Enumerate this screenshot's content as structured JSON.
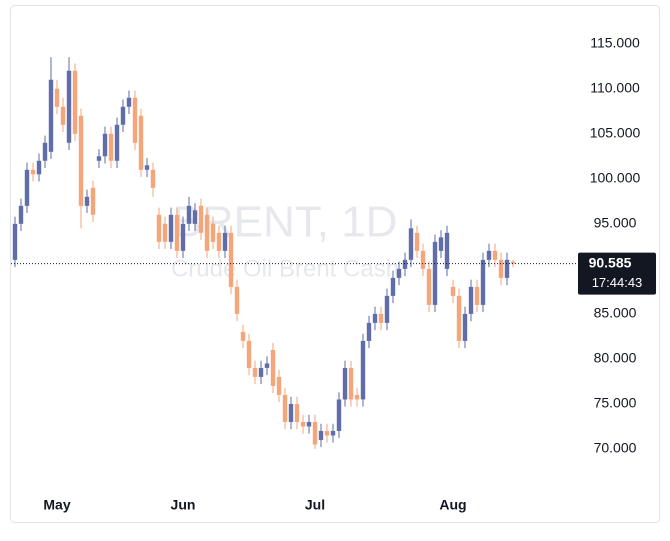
{
  "chart_data": {
    "type": "candlestick",
    "watermark_title": "BRENT, 1D",
    "watermark_subtitle": "Crude Oil Brent Cash",
    "categories": [
      null,
      null,
      null,
      null,
      null,
      null,
      null,
      "May",
      null,
      null,
      null,
      null,
      null,
      null,
      null,
      null,
      null,
      null,
      null,
      null,
      null,
      null,
      null,
      null,
      null,
      null,
      null,
      null,
      "Jun",
      null,
      null,
      null,
      null,
      null,
      null,
      null,
      null,
      null,
      null,
      null,
      null,
      null,
      null,
      null,
      null,
      null,
      null,
      null,
      null,
      null,
      "Jul",
      null,
      null,
      null,
      null,
      null,
      null,
      null,
      null,
      null,
      null,
      null,
      null,
      null,
      null,
      null,
      null,
      null,
      null,
      null,
      null,
      null,
      null,
      "Aug",
      null,
      null,
      null,
      null,
      null,
      null,
      null,
      null,
      null,
      null
    ],
    "open": [
      91,
      95,
      97,
      101,
      100.5,
      102,
      103,
      110,
      108,
      104,
      112,
      107,
      97,
      99,
      102,
      102.5,
      105,
      102,
      106,
      108,
      109,
      107,
      101,
      101,
      96,
      95,
      93,
      96,
      92,
      95,
      95,
      97,
      96,
      95,
      94,
      92,
      94,
      88,
      83,
      82,
      79,
      78,
      79,
      81,
      78,
      76,
      73,
      75,
      73,
      72.5,
      73,
      71,
      72,
      71.5,
      72,
      75.5,
      79,
      76,
      75.5,
      82,
      84,
      85,
      84,
      87,
      89,
      90,
      91,
      94,
      92,
      90,
      86,
      92,
      90,
      88,
      87,
      82,
      85,
      88,
      86,
      91,
      92,
      91,
      89,
      90.8
    ],
    "high": [
      95.8,
      97.8,
      101.8,
      101.8,
      102.8,
      104.8,
      113.5,
      111,
      109,
      113.5,
      112.8,
      107.8,
      98.8,
      99.8,
      103.3,
      105.8,
      105.8,
      106.8,
      108.8,
      109.8,
      109.8,
      107.8,
      102.3,
      101.8,
      96.8,
      95.8,
      96.8,
      96.8,
      95.8,
      98,
      97.3,
      97.8,
      96.8,
      95.8,
      94.8,
      94.8,
      94.8,
      88.8,
      83.8,
      82.8,
      79.8,
      79.8,
      80.3,
      81.8,
      78.8,
      76.8,
      75.8,
      75.8,
      73.8,
      73.8,
      73.8,
      72.8,
      72.8,
      72.8,
      76.3,
      79.8,
      79.8,
      76.8,
      82.8,
      84.8,
      85.8,
      85.8,
      87.8,
      89.8,
      90.8,
      91.8,
      95.5,
      94.8,
      92.8,
      90.8,
      93.8,
      94.3,
      94.8,
      88.8,
      87.8,
      85.8,
      88.8,
      88.8,
      91.8,
      92.8,
      92.8,
      91.8,
      91.8,
      91
    ],
    "low": [
      90.2,
      94.2,
      96.2,
      99.7,
      99.7,
      101.2,
      102.2,
      107.2,
      105.2,
      103.2,
      104.2,
      94.5,
      96.2,
      95.2,
      101.2,
      101.7,
      101.2,
      101.2,
      105.2,
      107.2,
      103.2,
      100.2,
      100.2,
      98,
      92.2,
      92.2,
      92.2,
      91.2,
      91.2,
      94.2,
      94.2,
      93.2,
      91.2,
      92.2,
      91.2,
      91.2,
      87.2,
      84.2,
      81.2,
      78.2,
      77.2,
      77.2,
      78.2,
      76.2,
      75.2,
      72.2,
      72.2,
      72.2,
      71.7,
      71.7,
      70,
      70.2,
      70.7,
      70.7,
      71.2,
      74.7,
      74.7,
      74.7,
      74.7,
      81.2,
      83.2,
      83.2,
      83.2,
      86.2,
      88.2,
      89.2,
      90.2,
      91.2,
      89.2,
      85.2,
      85.2,
      91.2,
      89.2,
      86.2,
      81.2,
      81.2,
      84.2,
      85.2,
      85.2,
      90.2,
      90.2,
      88.2,
      88.2,
      90.2
    ],
    "close": [
      95,
      97,
      101,
      100.5,
      102,
      104,
      111,
      108,
      106,
      112,
      105,
      97,
      98,
      96,
      102.5,
      105,
      102,
      106,
      108,
      109,
      104,
      101,
      101.5,
      99,
      93,
      93,
      96,
      92,
      95,
      97,
      96.5,
      94,
      92,
      93,
      92,
      94,
      88,
      85,
      82,
      79,
      78,
      79,
      79.5,
      77,
      76,
      73,
      75,
      73,
      72.5,
      73,
      70.5,
      72,
      71.5,
      72,
      75.5,
      79,
      75.5,
      75.5,
      82,
      84,
      85,
      84,
      87,
      89,
      90,
      91,
      94.5,
      92,
      90,
      86,
      93,
      93.5,
      94,
      87,
      82,
      85,
      88,
      86,
      91,
      92,
      91,
      89,
      91,
      90.585
    ],
    "up_color": "#5f6ea8",
    "down_color": "#f4a57a",
    "ylim": [
      66,
      119.3
    ],
    "yticks": [
      {
        "value": 70,
        "label": "70.000"
      },
      {
        "value": 75,
        "label": "75.000"
      },
      {
        "value": 80,
        "label": "80.000"
      },
      {
        "value": 85,
        "label": "85.000"
      },
      {
        "value": 90,
        "label": "90.000"
      },
      {
        "value": 95,
        "label": "95.000"
      },
      {
        "value": 100,
        "label": "100.000"
      },
      {
        "value": 105,
        "label": "105.000"
      },
      {
        "value": 110,
        "label": "110.000"
      },
      {
        "value": 115,
        "label": "115.000"
      }
    ],
    "current_price": 90.585,
    "countdown": "17:44:43"
  }
}
